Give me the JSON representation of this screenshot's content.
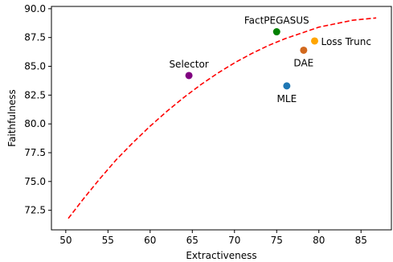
{
  "chart_data": {
    "type": "scatter",
    "title": "",
    "xlabel": "Extractiveness",
    "ylabel": "Faithfulness",
    "xlim": [
      48.3,
      88.6
    ],
    "ylim": [
      70.8,
      90.2
    ],
    "grid": false,
    "x_ticks": [
      50,
      55,
      60,
      65,
      70,
      75,
      80,
      85
    ],
    "y_ticks": [
      72.5,
      75.0,
      77.5,
      80.0,
      82.5,
      85.0,
      87.5,
      90.0
    ],
    "x_tick_labels": [
      "50",
      "55",
      "60",
      "65",
      "70",
      "75",
      "80",
      "85"
    ],
    "y_tick_labels": [
      "72.5",
      "75.0",
      "77.5",
      "80.0",
      "82.5",
      "85.0",
      "87.5",
      "90.0"
    ],
    "points": [
      {
        "label": "Selector",
        "x": 64.6,
        "y": 84.2,
        "color": "#800080",
        "label_pos": "above"
      },
      {
        "label": "FactPEGASUS",
        "x": 75.0,
        "y": 88.0,
        "color": "#008000",
        "label_pos": "above"
      },
      {
        "label": "Loss Trunc",
        "x": 79.5,
        "y": 87.2,
        "color": "#ffa500",
        "label_pos": "right"
      },
      {
        "label": "DAE",
        "x": 78.2,
        "y": 86.4,
        "color": "#d2691e",
        "label_pos": "below"
      },
      {
        "label": "MLE",
        "x": 76.2,
        "y": 83.3,
        "color": "#1f77b4",
        "label_pos": "below"
      }
    ],
    "trend_line": {
      "style": "dashed",
      "color": "#ff0000",
      "x": [
        50.3,
        52,
        54,
        56,
        58,
        60,
        62,
        64,
        66,
        68,
        70,
        72,
        74,
        76,
        78,
        80,
        82,
        84,
        86.8
      ],
      "y": [
        71.8,
        73.4,
        75.2,
        76.9,
        78.4,
        79.8,
        81.1,
        82.3,
        83.4,
        84.4,
        85.3,
        86.1,
        86.8,
        87.4,
        87.9,
        88.4,
        88.7,
        89.0,
        89.2
      ]
    }
  }
}
